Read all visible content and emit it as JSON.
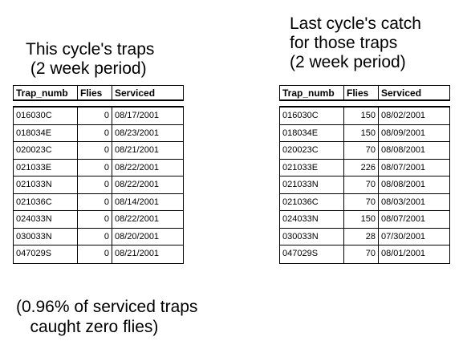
{
  "left": {
    "heading": "This cycle's traps\n (2 week period)",
    "headers": [
      "Trap_numb",
      "Flies",
      "Serviced"
    ],
    "rows": [
      [
        "016030C",
        "0",
        "08/17/2001"
      ],
      [
        "018034E",
        "0",
        "08/23/2001"
      ],
      [
        "020023C",
        "0",
        "08/21/2001"
      ],
      [
        "021033E",
        "0",
        "08/22/2001"
      ],
      [
        "021033N",
        "0",
        "08/22/2001"
      ],
      [
        "021036C",
        "0",
        "08/14/2001"
      ],
      [
        "024033N",
        "0",
        "08/22/2001"
      ],
      [
        "030033N",
        "0",
        "08/20/2001"
      ],
      [
        "047029S",
        "0",
        "08/21/2001"
      ]
    ]
  },
  "right": {
    "heading": "Last cycle's catch\nfor those traps\n(2 week period)",
    "headers": [
      "Trap_numb",
      "Flies",
      "Serviced"
    ],
    "rows": [
      [
        "016030C",
        "150",
        "08/02/2001"
      ],
      [
        "018034E",
        "150",
        "08/09/2001"
      ],
      [
        "020023C",
        "70",
        "08/08/2001"
      ],
      [
        "021033E",
        "226",
        "08/07/2001"
      ],
      [
        "021033N",
        "70",
        "08/08/2001"
      ],
      [
        "021036C",
        "70",
        "08/03/2001"
      ],
      [
        "024033N",
        "150",
        "08/07/2001"
      ],
      [
        "030033N",
        "28",
        "07/30/2001"
      ],
      [
        "047029S",
        "70",
        "08/01/2001"
      ]
    ]
  },
  "note": "(0.96% of serviced traps\n   caught zero flies)"
}
